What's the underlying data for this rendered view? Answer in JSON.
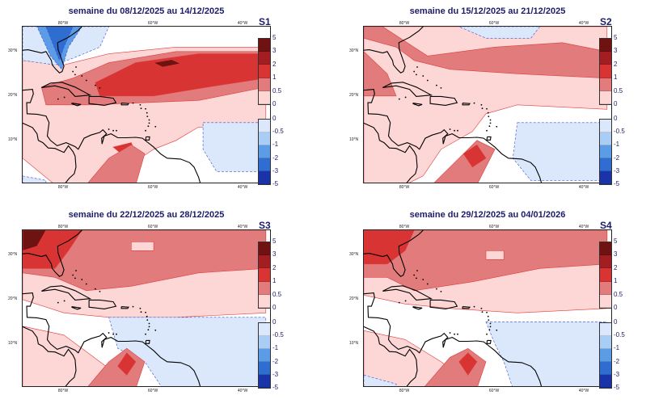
{
  "panels": [
    {
      "title": "semaine du 08/12/2025 au 14/12/2025",
      "label": "S1"
    },
    {
      "title": "semaine du 15/12/2025 au 21/12/2025",
      "label": "S2"
    },
    {
      "title": "semaine du 22/12/2025 au 28/12/2025",
      "label": "S3"
    },
    {
      "title": "semaine du 29/12/2025 au 04/01/2026",
      "label": "S4"
    }
  ],
  "axes": {
    "lon_labels": [
      "80°W",
      "60°W",
      "40°W"
    ],
    "lat_labels": [
      "30°N",
      "20°N",
      "10°N"
    ]
  },
  "legend": {
    "positive": {
      "ticks": [
        "5",
        "3",
        "2",
        "1",
        "0.5",
        "0"
      ],
      "colors": [
        "#6e1212",
        "#a31e22",
        "#d83434",
        "#e27c7c",
        "#fdd6d6"
      ]
    },
    "negative": {
      "ticks": [
        "0",
        "-0.5",
        "-1",
        "-2",
        "-3",
        "-5"
      ],
      "colors": [
        "#dbe7fb",
        "#a9cdf5",
        "#5c9ce6",
        "#2f6dd0",
        "#1b33a8"
      ]
    }
  },
  "colors": {
    "title": "#1c1c6a",
    "contour_pos": "#e03c3c",
    "contour_neg": "#3a4fd0"
  }
}
